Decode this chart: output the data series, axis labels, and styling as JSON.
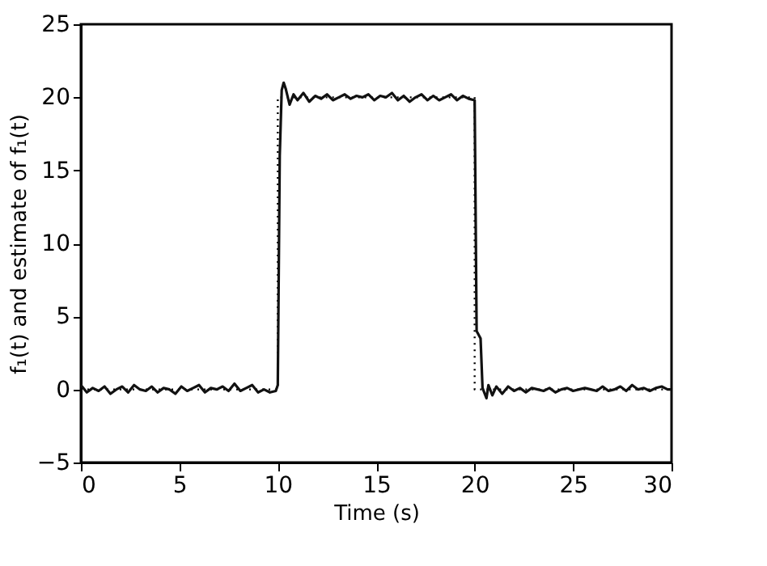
{
  "chart_data": {
    "type": "line",
    "xlabel": "Time (s)",
    "ylabel": "f₁(t) and estimate of f₁(t)",
    "xlim": [
      0,
      30
    ],
    "ylim": [
      -5,
      25
    ],
    "xticks": [
      0,
      5,
      10,
      15,
      20,
      25,
      30
    ],
    "yticks": [
      -5,
      0,
      5,
      10,
      15,
      20,
      25
    ],
    "grid": false,
    "legend": false,
    "series": [
      {
        "type": "step",
        "color": "#000000",
        "line_style": "dotted",
        "x": [
          0,
          10,
          20,
          30
        ],
        "values": [
          0,
          20,
          0,
          0
        ]
      },
      {
        "color": "#111111",
        "line_style": "solid",
        "x": [
          0,
          0.3,
          0.6,
          0.9,
          1.2,
          1.5,
          1.8,
          2.1,
          2.4,
          2.7,
          3.0,
          3.3,
          3.6,
          3.9,
          4.2,
          4.5,
          4.8,
          5.1,
          5.4,
          5.7,
          6.0,
          6.3,
          6.6,
          6.9,
          7.2,
          7.5,
          7.8,
          8.1,
          8.4,
          8.7,
          9.0,
          9.3,
          9.6,
          9.9,
          10.0,
          10.1,
          10.2,
          10.3,
          10.4,
          10.6,
          10.8,
          11.0,
          11.3,
          11.6,
          11.9,
          12.2,
          12.5,
          12.8,
          13.1,
          13.4,
          13.7,
          14.0,
          14.3,
          14.6,
          14.9,
          15.2,
          15.5,
          15.8,
          16.1,
          16.4,
          16.7,
          17.0,
          17.3,
          17.6,
          17.9,
          18.2,
          18.5,
          18.8,
          19.1,
          19.4,
          19.7,
          20.0,
          20.1,
          20.3,
          20.4,
          20.6,
          20.7,
          20.9,
          21.1,
          21.4,
          21.7,
          22.0,
          22.3,
          22.6,
          22.9,
          23.2,
          23.5,
          23.8,
          24.1,
          24.4,
          24.7,
          25.0,
          25.3,
          25.6,
          25.9,
          26.2,
          26.5,
          26.8,
          27.1,
          27.4,
          27.7,
          28.0,
          28.3,
          28.6,
          28.9,
          29.2,
          29.5,
          29.8,
          30.0
        ],
        "values": [
          0.3,
          -0.2,
          0.1,
          -0.1,
          0.2,
          -0.3,
          0.0,
          0.2,
          -0.2,
          0.3,
          0.0,
          -0.1,
          0.2,
          -0.2,
          0.1,
          0.0,
          -0.3,
          0.2,
          -0.1,
          0.1,
          0.3,
          -0.2,
          0.1,
          0.0,
          0.2,
          -0.1,
          0.4,
          -0.1,
          0.1,
          0.3,
          -0.2,
          0.0,
          -0.2,
          -0.1,
          0.3,
          16.0,
          20.5,
          21.0,
          20.6,
          19.5,
          20.2,
          19.8,
          20.3,
          19.7,
          20.1,
          19.9,
          20.2,
          19.8,
          20.0,
          20.2,
          19.9,
          20.1,
          20.0,
          20.2,
          19.8,
          20.1,
          20.0,
          20.3,
          19.8,
          20.1,
          19.7,
          20.0,
          20.2,
          19.8,
          20.1,
          19.8,
          20.0,
          20.2,
          19.8,
          20.1,
          19.9,
          19.8,
          4.0,
          3.5,
          0.1,
          -0.6,
          0.3,
          -0.4,
          0.2,
          -0.3,
          0.2,
          -0.1,
          0.1,
          -0.2,
          0.1,
          0.0,
          -0.1,
          0.1,
          -0.2,
          0.0,
          0.1,
          -0.1,
          0.0,
          0.1,
          0.0,
          -0.1,
          0.2,
          -0.1,
          0.0,
          0.2,
          -0.1,
          0.3,
          0.0,
          0.1,
          -0.1,
          0.1,
          0.2,
          0.0,
          0.0
        ]
      }
    ]
  }
}
